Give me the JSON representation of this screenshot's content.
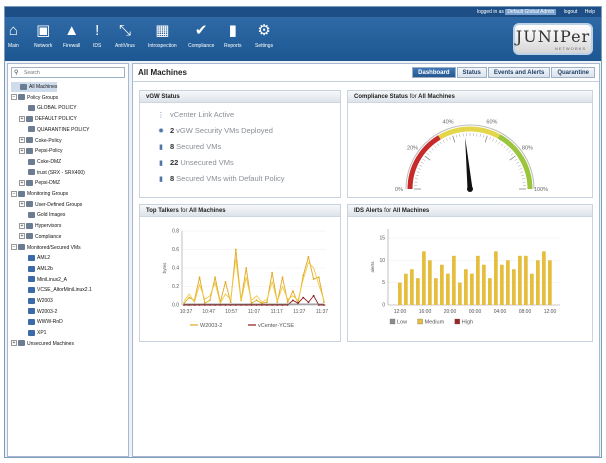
{
  "topbar": {
    "logged_in_prefix": "logged in as",
    "user": "Default Global Admin",
    "logout": "logout",
    "help": "Help"
  },
  "nav": [
    {
      "label": "Main",
      "icon": "home-icon",
      "glyph": "⌂"
    },
    {
      "label": "Network",
      "icon": "monitor-icon",
      "glyph": "▣"
    },
    {
      "label": "Firewall",
      "icon": "firewall-icon",
      "glyph": "▲"
    },
    {
      "label": "IDS",
      "icon": "alert-icon",
      "glyph": "!"
    },
    {
      "label": "AntiVirus",
      "icon": "syringe-icon",
      "glyph": "⤡"
    },
    {
      "label": "Introspection",
      "icon": "introspection-icon",
      "glyph": "▦"
    },
    {
      "label": "Compliance",
      "icon": "check-icon",
      "glyph": "✔"
    },
    {
      "label": "Reports",
      "icon": "bar-chart-icon",
      "glyph": "▮"
    },
    {
      "label": "Settings",
      "icon": "gear-icon",
      "glyph": "⚙"
    }
  ],
  "logo": {
    "word": "JUNIPer",
    "sub": "NETWORKS"
  },
  "search": {
    "placeholder": "Search"
  },
  "tree": [
    {
      "label": "All Machines",
      "level": 0,
      "toggle": "",
      "selected": true,
      "kind": "group"
    },
    {
      "label": "Policy Groups",
      "level": 0,
      "toggle": "−",
      "kind": "group"
    },
    {
      "label": "GLOBAL POLICY",
      "level": 1,
      "toggle": "",
      "kind": "group"
    },
    {
      "label": "DEFAULT POLICY",
      "level": 1,
      "toggle": "+",
      "kind": "group"
    },
    {
      "label": "QUARANTINE POLICY",
      "level": 1,
      "toggle": "",
      "kind": "group"
    },
    {
      "label": "Coke-Policy",
      "level": 1,
      "toggle": "+",
      "kind": "group"
    },
    {
      "label": "Pepsi-Policy",
      "level": 1,
      "toggle": "+",
      "kind": "group"
    },
    {
      "label": "Coke-DMZ",
      "level": 1,
      "toggle": "",
      "kind": "group"
    },
    {
      "label": "trust (SRX - SRX400)",
      "level": 1,
      "toggle": "",
      "kind": "group"
    },
    {
      "label": "Pepsi-DMZ",
      "level": 1,
      "toggle": "+",
      "kind": "group"
    },
    {
      "label": "Monitoring Groups",
      "level": 0,
      "toggle": "−",
      "kind": "group"
    },
    {
      "label": "User-Defined Groups",
      "level": 1,
      "toggle": "+",
      "kind": "group"
    },
    {
      "label": "Gold Images",
      "level": 1,
      "toggle": "",
      "kind": "group"
    },
    {
      "label": "Hypervisors",
      "level": 1,
      "toggle": "+",
      "kind": "group"
    },
    {
      "label": "Compliance",
      "level": 1,
      "toggle": "+",
      "kind": "group"
    },
    {
      "label": "Monitored/Secured VMs",
      "level": 0,
      "toggle": "−",
      "kind": "group"
    },
    {
      "label": "AML2",
      "level": 1,
      "toggle": "",
      "kind": "vm"
    },
    {
      "label": "AML2b",
      "level": 1,
      "toggle": "",
      "kind": "vm"
    },
    {
      "label": "MiniLinux2_A",
      "level": 1,
      "toggle": "",
      "kind": "vm"
    },
    {
      "label": "VCSE_AltorMiniLinux2.1",
      "level": 1,
      "toggle": "",
      "kind": "vm"
    },
    {
      "label": "W2003",
      "level": 1,
      "toggle": "",
      "kind": "vm"
    },
    {
      "label": "W2003-2",
      "level": 1,
      "toggle": "",
      "kind": "vm"
    },
    {
      "label": "WWW-RnD",
      "level": 1,
      "toggle": "",
      "kind": "vm"
    },
    {
      "label": "XP1",
      "level": 1,
      "toggle": "",
      "kind": "vm"
    },
    {
      "label": "Unsecured Machines",
      "level": 0,
      "toggle": "+",
      "kind": "group"
    }
  ],
  "main": {
    "title": "All Machines",
    "tabs": [
      {
        "label": "Dashboard",
        "active": true
      },
      {
        "label": "Status",
        "active": false
      },
      {
        "label": "Events and Alerts",
        "active": false
      },
      {
        "label": "Quarantine",
        "active": false
      }
    ]
  },
  "panels": {
    "vgw": {
      "title": "vGW Status",
      "rows": [
        {
          "icon": "vcenter-link-icon",
          "count": "",
          "text": "vCenter Link Active"
        },
        {
          "icon": "security-vm-icon",
          "count": "2",
          "text": "vGW Security VMs Deployed"
        },
        {
          "icon": "secured-vm-icon",
          "count": "8",
          "text": "Secured VMs"
        },
        {
          "icon": "unsecured-vm-icon",
          "count": "22",
          "text": "Unsecured VMs"
        },
        {
          "icon": "default-policy-vm-icon",
          "count": "8",
          "text": "Secured VMs with Default Policy"
        }
      ]
    },
    "compliance": {
      "title_prefix": "Compliance Status",
      "title_for": "for",
      "title_target": "All Machines"
    },
    "talkers": {
      "title_prefix": "Top Talkers",
      "title_for": "for",
      "title_target": "All Machines"
    },
    "ids": {
      "title_prefix": "IDS Alerts",
      "title_for": "for",
      "title_target": "All Machines"
    }
  },
  "chart_data": [
    {
      "type": "gauge",
      "tick_labels": [
        "0%",
        "20%",
        "40%",
        "60%",
        "80%",
        "100%"
      ],
      "value": 47,
      "colors": {
        "low": "#c62a2a",
        "mid": "#e3d64a",
        "high": "#9bc53d"
      }
    },
    {
      "type": "line",
      "ylabel": "bytes",
      "y_ticks": [
        "0.0",
        "0.2",
        "0.4",
        "0.6",
        "0.8"
      ],
      "ylim": [
        0,
        0.8
      ],
      "x_ticks": [
        "10:37",
        "10:47",
        "10:57",
        "11:07",
        "11:17",
        "11:27",
        "11:37"
      ],
      "series": [
        {
          "name": "W2003-2",
          "color": "#e0a820",
          "values": [
            0.02,
            0.08,
            0.05,
            0.3,
            0.02,
            0.05,
            0.3,
            0.03,
            0.25,
            0.03,
            0.6,
            0.05,
            0.4,
            0.02,
            0.05,
            0.02,
            0.03,
            0.35,
            0.03,
            0.3,
            0.03,
            0.15,
            0.02,
            0.32,
            0.52,
            0.28,
            0.3,
            0.03
          ]
        },
        {
          "name": "vCenter-YCSE",
          "color": "#8a1d1d",
          "values": [
            0,
            0,
            0,
            0,
            0,
            0,
            0,
            0,
            0,
            0,
            0,
            0,
            0,
            0,
            0,
            0,
            0,
            0,
            0,
            0,
            0,
            0.05,
            0.02,
            0.08,
            0.03,
            0.1,
            0,
            0
          ]
        },
        {
          "name": "",
          "color": "#f0c840",
          "values": [
            0.04,
            0.12,
            0.03,
            0.22,
            0.06,
            0.1,
            0.24,
            0.02,
            0.12,
            0.06,
            0.5,
            0.04,
            0.3,
            0.05,
            0.1,
            0.03,
            0.06,
            0.25,
            0.04,
            0.2,
            0.06,
            0.1,
            0.05,
            0.28,
            0.46,
            0.4,
            0.22,
            0.05
          ]
        },
        {
          "name": "",
          "color": "#7d7d7d",
          "values": [
            0.01,
            0.01,
            0.01,
            0.01,
            0.01,
            0.01,
            0.01,
            0.01,
            0.01,
            0.01,
            0.01,
            0.01,
            0.01,
            0.01,
            0.01,
            0.01,
            0.01,
            0.01,
            0.01,
            0.01,
            0.01,
            0.01,
            0.01,
            0.01,
            0.01,
            0.01,
            0.01,
            0.01
          ]
        }
      ]
    },
    {
      "type": "bar",
      "ylabel": "alerts",
      "y_ticks": [
        "0",
        "5",
        "10",
        "15"
      ],
      "ylim": [
        0,
        17
      ],
      "x_ticks": [
        "12:00",
        "16:00",
        "20:00",
        "00:00",
        "04:00",
        "08:00",
        "12:00"
      ],
      "series": [
        {
          "name": "Low",
          "color": "#8c8c8c",
          "values": [
            0,
            0,
            0,
            0,
            0,
            0,
            0,
            0,
            0,
            0,
            0,
            0,
            0,
            0,
            0,
            0,
            0,
            0,
            0,
            0,
            0,
            0,
            0,
            0,
            0,
            0
          ]
        },
        {
          "name": "Medium",
          "color": "#e6bd3c",
          "values": [
            5,
            7,
            8,
            6,
            12,
            10,
            6,
            9,
            7,
            11,
            5,
            8,
            7,
            11,
            9,
            6,
            12,
            9,
            10,
            8,
            11,
            11,
            7,
            10,
            12,
            10
          ]
        },
        {
          "name": "High",
          "color": "#9c2424",
          "values": [
            0,
            0,
            0,
            0,
            0,
            0,
            0,
            0,
            0,
            0,
            0,
            0,
            0,
            0,
            0,
            0,
            0,
            0,
            0,
            0,
            0,
            0,
            0,
            0,
            0,
            0
          ]
        }
      ]
    }
  ]
}
